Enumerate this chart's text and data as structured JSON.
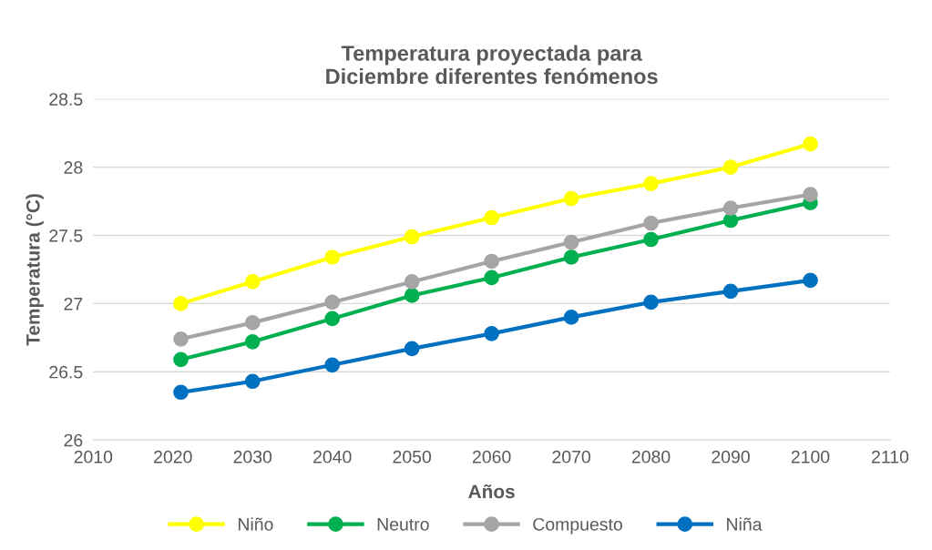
{
  "chart_data": {
    "type": "line",
    "title": "Temperatura proyectada para\nDiciembre diferentes fenómenos",
    "xlabel": "Años",
    "ylabel": "Temperatura (°C)",
    "x": [
      2021,
      2030,
      2040,
      2050,
      2060,
      2070,
      2080,
      2090,
      2100
    ],
    "series": [
      {
        "name": "Niño",
        "color": "#ffff00",
        "values": [
          27.0,
          27.16,
          27.34,
          27.49,
          27.63,
          27.77,
          27.88,
          28.0,
          28.17
        ]
      },
      {
        "name": "Neutro",
        "color": "#00b050",
        "values": [
          26.59,
          26.72,
          26.89,
          27.06,
          27.19,
          27.34,
          27.47,
          27.61,
          27.74
        ]
      },
      {
        "name": "Compuesto",
        "color": "#a5a5a5",
        "values": [
          26.74,
          26.86,
          27.01,
          27.16,
          27.31,
          27.45,
          27.59,
          27.7,
          27.8
        ]
      },
      {
        "name": "Niña",
        "color": "#0070c0",
        "values": [
          26.35,
          26.43,
          26.55,
          26.67,
          26.78,
          26.9,
          27.01,
          27.09,
          27.17
        ]
      }
    ],
    "xlim": [
      2010,
      2110
    ],
    "xticks": [
      2010,
      2020,
      2030,
      2040,
      2050,
      2060,
      2070,
      2080,
      2090,
      2100,
      2110
    ],
    "ylim": [
      26,
      28.5
    ],
    "yticks": [
      26,
      {
        "value": 26.5,
        "label": "26.5"
      },
      27,
      {
        "value": 27.5,
        "label": "27.5"
      },
      28,
      {
        "value": 28.5,
        "label": "28.5"
      }
    ],
    "grid": "y",
    "legend": "bottom",
    "marker": "circle",
    "line_style": "solid"
  }
}
